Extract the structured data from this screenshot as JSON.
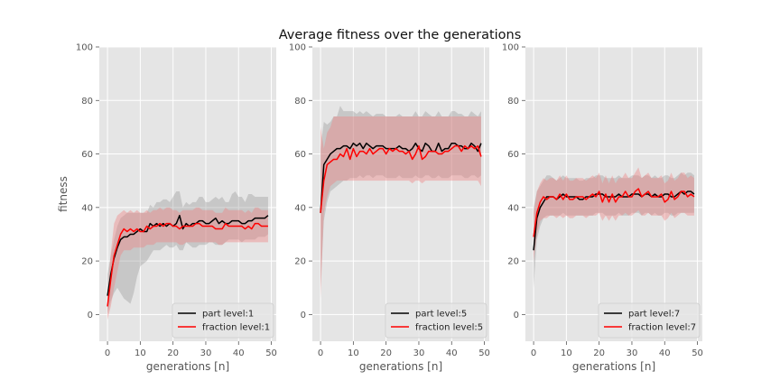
{
  "figure": {
    "title": "Average fitness over the generations"
  },
  "chart_data": [
    {
      "type": "line",
      "xlabel": "generations [n]",
      "ylabel": "fitness",
      "xlim": [
        -2.5,
        51.5
      ],
      "ylim": [
        -10,
        100
      ],
      "xticks": [
        0,
        10,
        20,
        30,
        40,
        50
      ],
      "yticks": [
        0,
        20,
        40,
        60,
        80,
        100
      ],
      "grid": true,
      "legend": "lower-right",
      "series": [
        {
          "name": "part level:1",
          "color": "#000000",
          "band_color": "#808080",
          "values": [
            7,
            15,
            21,
            25,
            28,
            29,
            29,
            30,
            30,
            31,
            32,
            31,
            31,
            34,
            33,
            34,
            33,
            34,
            33,
            34,
            33,
            34,
            37,
            32,
            34,
            33,
            34,
            34,
            35,
            35,
            34,
            34,
            35,
            36,
            34,
            35,
            34,
            34,
            35,
            35,
            35,
            34,
            34,
            35,
            35,
            36,
            36,
            36,
            36,
            37
          ],
          "band_low": [
            0,
            5,
            8,
            10,
            8,
            6,
            5,
            4,
            8,
            14,
            18,
            19,
            20,
            22,
            24,
            24,
            24,
            25,
            26,
            25,
            25,
            26,
            24,
            24,
            27,
            26,
            25,
            25,
            26,
            26,
            26,
            27,
            27,
            26,
            26,
            26,
            27,
            28,
            28,
            28,
            28,
            27,
            28,
            28,
            28,
            28,
            29,
            29,
            29,
            30
          ],
          "band_high": [
            15,
            22,
            28,
            33,
            36,
            37,
            38,
            38,
            38,
            38,
            38,
            38,
            38,
            41,
            40,
            42,
            42,
            43,
            43,
            42,
            44,
            46,
            46,
            40,
            42,
            41,
            42,
            42,
            44,
            44,
            42,
            42,
            43,
            44,
            43,
            44,
            42,
            42,
            45,
            46,
            44,
            44,
            42,
            45,
            45,
            44,
            44,
            44,
            44,
            44
          ]
        },
        {
          "name": "fraction level:1",
          "color": "#ff0000",
          "band_color": "#f08080",
          "values": [
            3,
            13,
            22,
            26,
            30,
            32,
            31,
            32,
            31,
            32,
            31,
            31,
            33,
            32,
            33,
            33,
            34,
            33,
            34,
            34,
            33,
            33,
            32,
            33,
            33,
            33,
            33,
            34,
            34,
            33,
            33,
            33,
            33,
            32,
            32,
            32,
            34,
            33,
            33,
            33,
            33,
            33,
            32,
            33,
            32,
            34,
            34,
            33,
            33,
            33
          ],
          "band_low": [
            -2,
            3,
            10,
            16,
            22,
            24,
            24,
            24,
            25,
            25,
            25,
            25,
            26,
            26,
            26,
            27,
            27,
            27,
            27,
            27,
            27,
            27,
            26,
            26,
            27,
            27,
            27,
            27,
            27,
            27,
            27,
            27,
            27,
            27,
            26,
            26,
            27,
            27,
            27,
            27,
            27,
            27,
            27,
            27,
            27,
            27,
            27,
            27,
            27,
            27
          ],
          "band_high": [
            8,
            23,
            34,
            37,
            38,
            39,
            38,
            39,
            38,
            39,
            38,
            38,
            39,
            38,
            39,
            39,
            40,
            39,
            40,
            40,
            39,
            39,
            38,
            39,
            39,
            39,
            39,
            40,
            40,
            39,
            39,
            39,
            39,
            38,
            38,
            38,
            40,
            39,
            39,
            39,
            39,
            39,
            38,
            39,
            38,
            40,
            40,
            39,
            39,
            39
          ]
        }
      ]
    },
    {
      "type": "line",
      "xlabel": "generations [n]",
      "ylabel": "",
      "xlim": [
        -2.5,
        51.5
      ],
      "ylim": [
        -10,
        100
      ],
      "xticks": [
        0,
        10,
        20,
        30,
        40,
        50
      ],
      "yticks": [
        0,
        20,
        40,
        60,
        80,
        100
      ],
      "grid": true,
      "legend": "lower-right",
      "series": [
        {
          "name": "part level:5",
          "color": "#000000",
          "band_color": "#808080",
          "values": [
            38,
            56,
            58,
            60,
            61,
            62,
            62,
            63,
            63,
            62,
            64,
            63,
            64,
            62,
            64,
            63,
            62,
            63,
            63,
            63,
            62,
            62,
            62,
            62,
            63,
            62,
            62,
            61,
            62,
            64,
            62,
            61,
            64,
            63,
            61,
            61,
            64,
            61,
            62,
            62,
            64,
            64,
            63,
            63,
            62,
            62,
            64,
            63,
            61,
            64
          ],
          "band_low": [
            10,
            35,
            42,
            46,
            47,
            48,
            49,
            50,
            50,
            51,
            51,
            51,
            52,
            51,
            52,
            52,
            51,
            52,
            52,
            52,
            51,
            51,
            51,
            51,
            52,
            51,
            51,
            51,
            51,
            52,
            51,
            51,
            52,
            52,
            51,
            51,
            52,
            51,
            51,
            51,
            52,
            52,
            52,
            52,
            51,
            51,
            52,
            52,
            51,
            52
          ],
          "band_high": [
            62,
            72,
            71,
            72,
            74,
            74,
            78,
            76,
            76,
            76,
            76,
            75,
            76,
            75,
            76,
            75,
            74,
            75,
            75,
            75,
            74,
            74,
            74,
            74,
            75,
            74,
            74,
            74,
            74,
            76,
            74,
            74,
            76,
            75,
            74,
            74,
            76,
            74,
            74,
            74,
            76,
            76,
            75,
            75,
            74,
            74,
            76,
            75,
            74,
            76
          ]
        },
        {
          "name": "fraction level:5",
          "color": "#ff0000",
          "band_color": "#f08080",
          "values": [
            38,
            50,
            56,
            57,
            58,
            58,
            60,
            59,
            62,
            58,
            62,
            59,
            61,
            61,
            60,
            62,
            60,
            61,
            62,
            62,
            60,
            62,
            61,
            62,
            61,
            61,
            60,
            61,
            58,
            60,
            63,
            58,
            59,
            61,
            61,
            61,
            60,
            60,
            61,
            61,
            62,
            63,
            63,
            61,
            63,
            62,
            63,
            62,
            63,
            59
          ],
          "band_low": [
            6,
            38,
            44,
            48,
            49,
            50,
            50,
            50,
            50,
            50,
            50,
            50,
            50,
            50,
            50,
            50,
            50,
            50,
            50,
            50,
            50,
            50,
            50,
            50,
            50,
            50,
            50,
            50,
            49,
            50,
            50,
            49,
            50,
            50,
            50,
            50,
            50,
            50,
            50,
            50,
            50,
            50,
            50,
            50,
            50,
            50,
            50,
            50,
            50,
            48
          ],
          "band_high": [
            70,
            62,
            68,
            70,
            74,
            74,
            74,
            74,
            74,
            74,
            74,
            74,
            74,
            74,
            74,
            74,
            74,
            74,
            74,
            74,
            74,
            74,
            74,
            74,
            74,
            74,
            74,
            74,
            74,
            74,
            74,
            74,
            74,
            74,
            74,
            74,
            74,
            74,
            74,
            74,
            74,
            74,
            74,
            74,
            74,
            74,
            74,
            74,
            74,
            74
          ]
        }
      ]
    },
    {
      "type": "line",
      "xlabel": "generations [n]",
      "ylabel": "",
      "xlim": [
        -2.5,
        51.5
      ],
      "ylim": [
        -10,
        100
      ],
      "xticks": [
        0,
        10,
        20,
        30,
        40,
        50
      ],
      "yticks": [
        0,
        20,
        40,
        60,
        80,
        100
      ],
      "grid": true,
      "legend": "lower-right",
      "series": [
        {
          "name": "part level:7",
          "color": "#000000",
          "band_color": "#808080",
          "values": [
            24,
            36,
            40,
            42,
            44,
            44,
            44,
            43,
            44,
            45,
            44,
            44,
            44,
            44,
            43,
            43,
            44,
            44,
            44,
            45,
            45,
            45,
            44,
            44,
            44,
            44,
            45,
            44,
            44,
            44,
            45,
            45,
            45,
            44,
            45,
            45,
            44,
            45,
            44,
            44,
            45,
            45,
            44,
            44,
            45,
            46,
            45,
            46,
            46,
            45
          ],
          "band_low": [
            10,
            28,
            33,
            36,
            37,
            37,
            37,
            37,
            37,
            38,
            37,
            37,
            37,
            37,
            37,
            37,
            37,
            37,
            37,
            38,
            38,
            38,
            37,
            37,
            37,
            37,
            38,
            37,
            37,
            37,
            38,
            38,
            38,
            37,
            38,
            38,
            37,
            38,
            37,
            37,
            38,
            38,
            37,
            37,
            38,
            38,
            38,
            38,
            38,
            38
          ],
          "band_high": [
            40,
            46,
            48,
            50,
            52,
            52,
            51,
            50,
            51,
            52,
            51,
            51,
            51,
            51,
            50,
            50,
            51,
            51,
            51,
            52,
            52,
            52,
            51,
            51,
            51,
            51,
            52,
            51,
            51,
            51,
            52,
            52,
            52,
            51,
            52,
            52,
            51,
            52,
            51,
            51,
            52,
            52,
            51,
            51,
            52,
            53,
            52,
            53,
            53,
            52
          ]
        },
        {
          "name": "fraction level:7",
          "color": "#ff0000",
          "band_color": "#f08080",
          "values": [
            29,
            38,
            42,
            44,
            43,
            44,
            44,
            43,
            45,
            43,
            45,
            43,
            43,
            44,
            44,
            44,
            43,
            44,
            45,
            44,
            46,
            42,
            45,
            42,
            45,
            42,
            44,
            44,
            46,
            44,
            44,
            46,
            47,
            44,
            45,
            46,
            44,
            44,
            44,
            45,
            42,
            43,
            46,
            43,
            44,
            46,
            46,
            44,
            45,
            44
          ],
          "band_low": [
            20,
            30,
            35,
            36,
            36,
            37,
            37,
            36,
            37,
            36,
            37,
            36,
            36,
            37,
            37,
            37,
            36,
            37,
            37,
            37,
            38,
            35,
            37,
            35,
            37,
            35,
            37,
            37,
            38,
            37,
            37,
            38,
            39,
            37,
            37,
            38,
            37,
            37,
            37,
            37,
            35,
            36,
            38,
            36,
            37,
            38,
            38,
            37,
            37,
            37
          ],
          "band_high": [
            38,
            46,
            49,
            51,
            50,
            51,
            51,
            50,
            52,
            50,
            52,
            50,
            50,
            51,
            51,
            51,
            50,
            51,
            52,
            51,
            53,
            49,
            52,
            49,
            52,
            49,
            51,
            51,
            53,
            51,
            51,
            53,
            55,
            51,
            52,
            53,
            51,
            51,
            51,
            52,
            49,
            50,
            53,
            50,
            51,
            53,
            53,
            51,
            52,
            51
          ]
        }
      ]
    }
  ]
}
